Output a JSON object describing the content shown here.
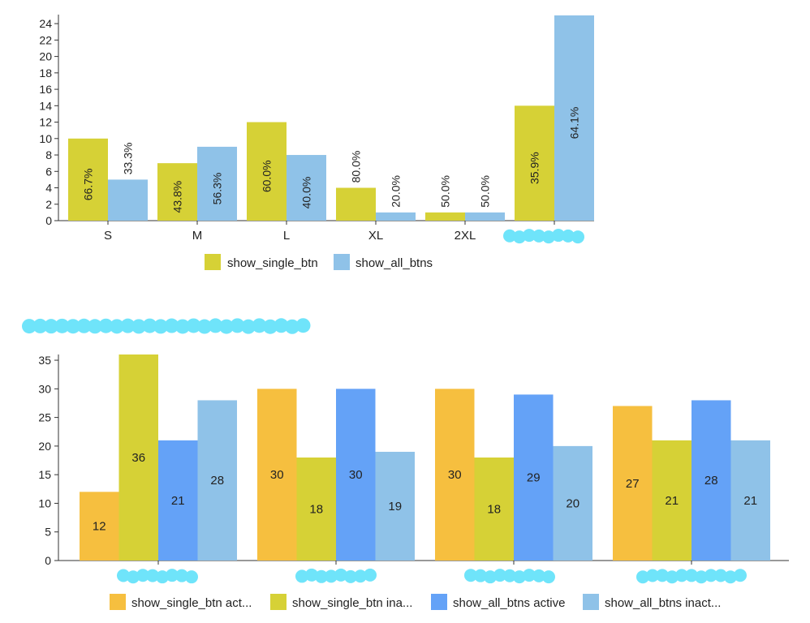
{
  "colors": {
    "single": "#d6d136",
    "all": "#8fc2e8",
    "single_active": "#f6bf3f",
    "single_inactive": "#d6d136",
    "all_active": "#64a2f7",
    "all_inactive": "#8fc2e8",
    "redaction": "#6fe4fa",
    "axis": "#333333",
    "text": "#222222"
  },
  "chart_data": [
    {
      "type": "bar",
      "categories": [
        "S",
        "M",
        "L",
        "XL",
        "2XL",
        "[redacted]"
      ],
      "series": [
        {
          "name": "show_single_btn",
          "values": [
            10,
            7,
            12,
            4,
            1,
            14
          ],
          "labels": [
            "66.7%",
            "43.8%",
            "60.0%",
            "80.0%",
            "50.0%",
            "35.9%"
          ]
        },
        {
          "name": "show_all_btns",
          "values": [
            5,
            9,
            8,
            1,
            1,
            25
          ],
          "labels": [
            "33.3%",
            "56.3%",
            "40.0%",
            "20.0%",
            "50.0%",
            "64.1%"
          ]
        }
      ],
      "yticks": [
        "0",
        "2",
        "4",
        "6",
        "8",
        "10",
        "12",
        "14",
        "16",
        "18",
        "20",
        "22",
        "24"
      ],
      "ylim": [
        0,
        25
      ],
      "legend": "bottom",
      "title": "",
      "xlabel": "",
      "ylabel": ""
    },
    {
      "type": "bar",
      "title": "[redacted]",
      "categories": [
        "[redacted]",
        "[redacted]",
        "[redacted]",
        "[redacted]"
      ],
      "series": [
        {
          "name": "show_single_btn act...",
          "values": [
            12,
            30,
            30,
            27
          ],
          "labels": [
            "12",
            "30",
            "30",
            "27"
          ]
        },
        {
          "name": "show_single_btn ina...",
          "values": [
            36,
            18,
            18,
            21
          ],
          "labels": [
            "36",
            "18",
            "18",
            "21"
          ]
        },
        {
          "name": "show_all_btns active",
          "values": [
            21,
            30,
            29,
            28
          ],
          "labels": [
            "21",
            "30",
            "29",
            "28"
          ]
        },
        {
          "name": "show_all_btns inact...",
          "values": [
            28,
            19,
            20,
            21
          ],
          "labels": [
            "28",
            "19",
            "20",
            "21"
          ]
        }
      ],
      "yticks": [
        "0",
        "5",
        "10",
        "15",
        "20",
        "25",
        "30",
        "35"
      ],
      "ylim": [
        0,
        36
      ],
      "legend": "bottom",
      "xlabel": "",
      "ylabel": ""
    }
  ]
}
